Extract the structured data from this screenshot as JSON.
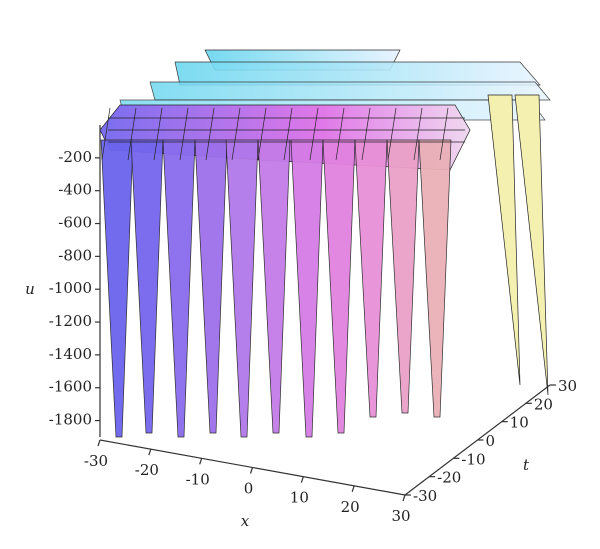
{
  "chart_data": {
    "type": "surface3d",
    "xlabel": "x",
    "ylabel": "t",
    "zlabel": "u",
    "xlim": [
      -30,
      30
    ],
    "xticks": [
      -30,
      -20,
      -10,
      0,
      10,
      20,
      30
    ],
    "ylim": [
      -30,
      30
    ],
    "yticks": [
      -30,
      -20,
      -10,
      0,
      10,
      20,
      30
    ],
    "zlim": [
      -1900,
      0
    ],
    "zticks": [
      -200,
      -400,
      -600,
      -800,
      -1000,
      -1200,
      -1400,
      -1600,
      -1800
    ]
  }
}
